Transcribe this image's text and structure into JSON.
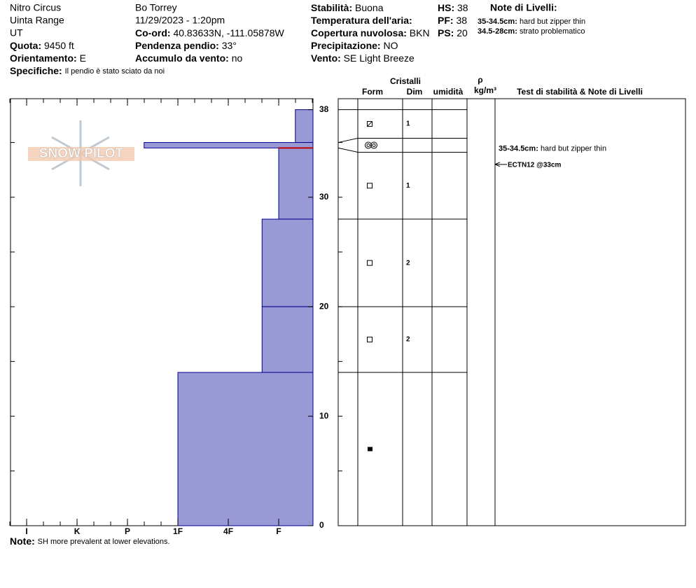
{
  "header": {
    "col1": {
      "name": "Nitro Circus",
      "range": "Uinta Range",
      "state": "UT",
      "fields": [
        {
          "label": "Quota:",
          "value": "9450 ft"
        },
        {
          "label": "Orientamento:",
          "value": "E"
        }
      ]
    },
    "specifics": {
      "label": "Specifiche:",
      "value": "Il pendio è stato sciato da noi"
    },
    "col2": {
      "observer": "Bo Torrey",
      "datetime": "11/29/2023 - 1:20pm",
      "fields": [
        {
          "label": "Co-ord:",
          "value": "40.83633N, -111.05878W"
        },
        {
          "label": "Pendenza pendio:",
          "value": "33°"
        },
        {
          "label": "Accumulo da vento:",
          "value": "no"
        }
      ]
    },
    "col3": [
      {
        "label": "Stabilità:",
        "value": "Buona"
      },
      {
        "label": "Temperatura dell'aria:",
        "value": ""
      },
      {
        "label": "Copertura nuvolosa:",
        "value": "BKN"
      },
      {
        "label": "Precipitazione:",
        "value": "NO"
      },
      {
        "label": "Vento:",
        "value": "SE  Light Breeze"
      }
    ],
    "col4": [
      {
        "label": "HS:",
        "value": 38
      },
      {
        "label": "PF:",
        "value": 38
      },
      {
        "label": "PS:",
        "value": 20
      }
    ],
    "notes_title": "Note di Livelli:"
  },
  "columns": {
    "crystals": "Cristalli",
    "form": "Form",
    "dim": "Dim",
    "moisture": "umidità",
    "rho": "ρ",
    "density": "kg/m³",
    "tests": "Test di stabilità & Note di Livelli"
  },
  "logo": "SNOW PILOT",
  "note": {
    "label": "Note:",
    "value": "SH more prevalent at lower elevations."
  },
  "chart_data": {
    "type": "snow-profile",
    "xlim": [
      6.32,
      0.32
    ],
    "ylim": [
      0,
      39
    ],
    "xticks": [
      {
        "value": 6,
        "label": "I"
      },
      {
        "value": 5,
        "label": "K"
      },
      {
        "value": 4,
        "label": "P"
      },
      {
        "value": 3,
        "label": "1F"
      },
      {
        "value": 2,
        "label": "4F"
      },
      {
        "value": 1,
        "label": "F"
      }
    ],
    "yticks": [
      0,
      10,
      20,
      30,
      38
    ],
    "color": "#9999d6",
    "edge_color": "#00008b",
    "critical_color": "#c00000",
    "layers": [
      {
        "top": 38,
        "bottom": 35,
        "hardness": 0.67,
        "size": 1
      },
      {
        "top": 35,
        "bottom": 34.5,
        "hardness": 3.67,
        "size": null,
        "range": "35-34.5cm:",
        "comment": "hard but zipper thin"
      },
      {
        "top": 34.5,
        "bottom": 28,
        "hardness": 1,
        "size": 1,
        "range": "34.5-28cm:",
        "critical": "strato problematico"
      },
      {
        "top": 28,
        "bottom": 20,
        "hardness": 1.33,
        "size": 2
      },
      {
        "top": 20,
        "bottom": 14,
        "hardness": 1.33,
        "size": 2
      },
      {
        "top": 14,
        "bottom": 0,
        "hardness": 3,
        "size": null
      }
    ],
    "tests": [
      {
        "label": "ECTN12 @33cm",
        "depth": 33
      }
    ]
  }
}
